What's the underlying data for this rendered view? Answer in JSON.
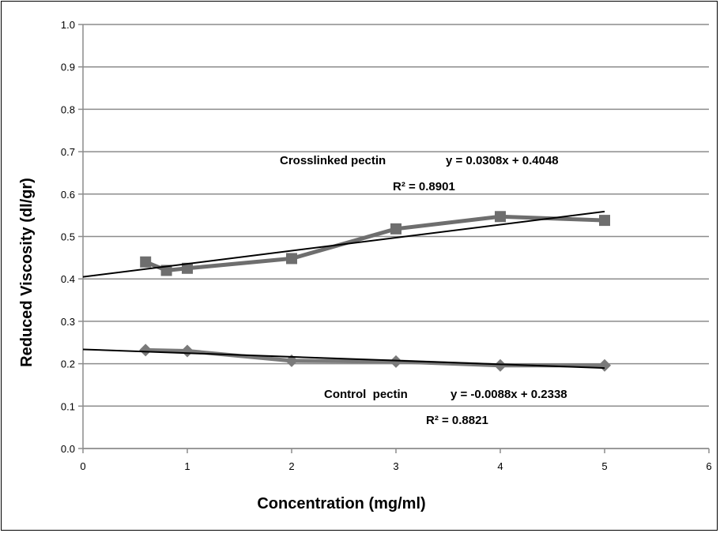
{
  "chart_data": {
    "type": "scatter",
    "xlabel": "Concentration (mg/ml)",
    "ylabel": "Reduced Viscosity (dl/gr)",
    "xlim": [
      0,
      6
    ],
    "ylim": [
      0,
      1.0
    ],
    "x_ticks": [
      "0",
      "1",
      "2",
      "3",
      "4",
      "5",
      "6"
    ],
    "y_ticks": [
      "0.0",
      "0.1",
      "0.2",
      "0.3",
      "0.4",
      "0.5",
      "0.6",
      "0.7",
      "0.8",
      "0.9",
      "1.0"
    ],
    "grid": "horizontal",
    "series": [
      {
        "name": "Crosslinked pectin",
        "marker": "square",
        "color": "#6e6e6e",
        "points": [
          [
            0.6,
            0.44
          ],
          [
            0.8,
            0.42
          ],
          [
            1.0,
            0.425
          ],
          [
            2.0,
            0.448
          ],
          [
            3.0,
            0.518
          ],
          [
            4.0,
            0.547
          ],
          [
            5.0,
            0.538
          ]
        ],
        "trendline": {
          "slope": 0.0308,
          "intercept": 0.4048,
          "x_range": [
            0,
            5
          ]
        },
        "equation": "y = 0.0308x + 0.4048",
        "r2": "R² = 0.8901"
      },
      {
        "name": "Control  pectin",
        "marker": "diamond",
        "color": "#7a7a7a",
        "points": [
          [
            0.6,
            0.232
          ],
          [
            1.0,
            0.23
          ],
          [
            2.0,
            0.207
          ],
          [
            3.0,
            0.205
          ],
          [
            4.0,
            0.196
          ],
          [
            5.0,
            0.196
          ]
        ],
        "trendline": {
          "slope": -0.0088,
          "intercept": 0.2338,
          "x_range": [
            0,
            5
          ]
        },
        "equation": "y = -0.0088x + 0.2338",
        "r2": "R² = 0.8821"
      }
    ]
  }
}
